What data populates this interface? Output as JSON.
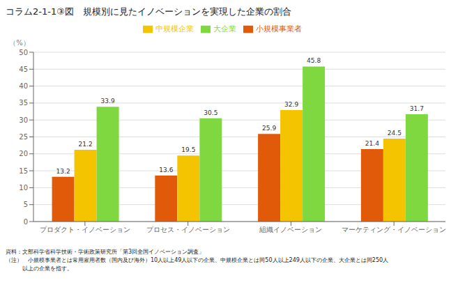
{
  "chart_data": {
    "type": "bar",
    "title": "コラム2-1-1③図　規模別に見たイノベーションを実現した企業の割合",
    "ylabel": "（%）",
    "categories": [
      "プロダクト・イノベーション",
      "プロセス・イノベーション",
      "組織イノベーション",
      "マーケティング・イノベーション"
    ],
    "series": [
      {
        "name": "小規模事業者",
        "color": "#E05A0A",
        "values": [
          13.2,
          13.6,
          25.9,
          21.4
        ]
      },
      {
        "name": "中規模企業",
        "color": "#F5C400",
        "values": [
          21.2,
          19.5,
          32.9,
          24.5
        ]
      },
      {
        "name": "大企業",
        "color": "#80D840",
        "values": [
          33.9,
          30.5,
          45.8,
          31.7
        ]
      }
    ],
    "ylim": [
      0,
      50
    ],
    "yticks": [
      0,
      5,
      10,
      15,
      20,
      25,
      30,
      35,
      40,
      45,
      50
    ],
    "grid": true,
    "legend": "top",
    "data_labels": true,
    "annotations": [
      "資料：文部科学省科学技術・学術政策研究所「第3回全国イノベーション調査」",
      "（注）　小規模事業者とは常用雇用者数（国内及び海外）10人以上49人以下の企業、中規模企業とは同50人以上249人以下の企業、大企業とは同250人",
      "　　　以上の企業を指す。"
    ]
  }
}
